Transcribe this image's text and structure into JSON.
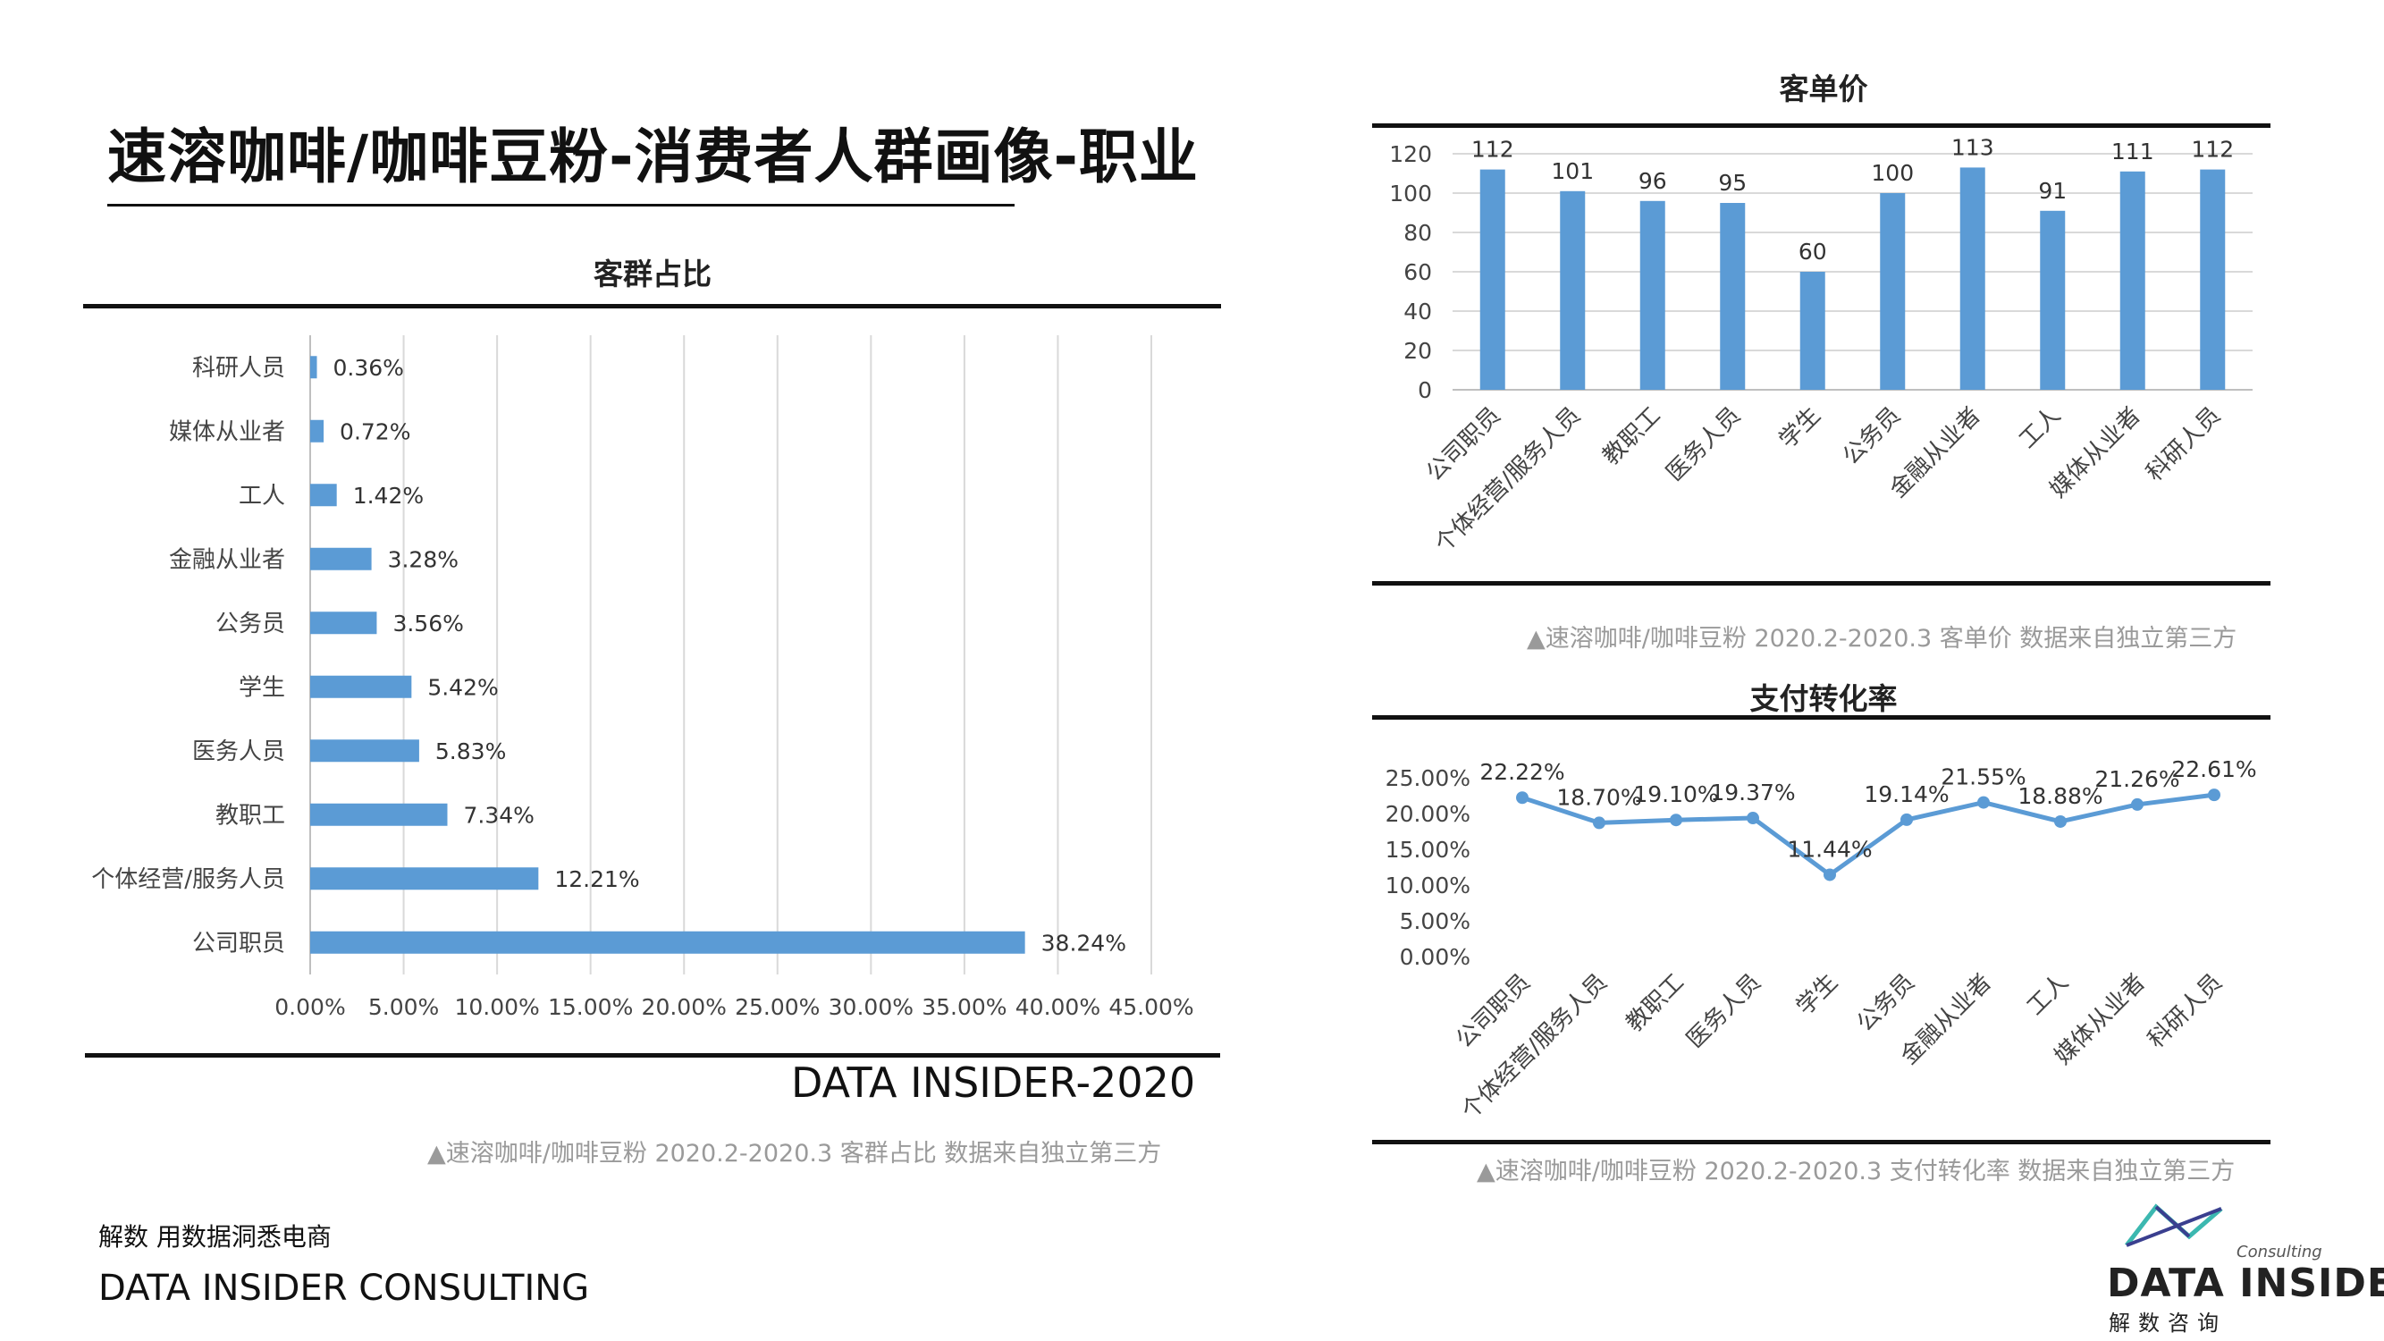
{
  "page": {
    "title": "速溶咖啡/咖啡豆粉-消费者人群画像-职业",
    "slogan": "解数 用数据洞悉电商",
    "brand": "DATA INSIDER CONSULTING",
    "year_tag": "DATA INSIDER-2020",
    "logo": {
      "word": "DATA INSIDER",
      "consulting": "Consulting",
      "cn": "解数咨询"
    }
  },
  "colors": {
    "bar": "#5B9BD5",
    "line": "#5B9BD5",
    "grid": "#d9d9d9",
    "rule": "#111111"
  },
  "chart_data": [
    {
      "id": "share",
      "type": "bar",
      "orientation": "horizontal",
      "title": "客群占比",
      "categories": [
        "科研人员",
        "媒体从业者",
        "工人",
        "金融从业者",
        "公务员",
        "学生",
        "医务人员",
        "教职工",
        "个体经营/服务人员",
        "公司职员"
      ],
      "values": [
        0.36,
        0.72,
        1.42,
        3.28,
        3.56,
        5.42,
        5.83,
        7.34,
        12.21,
        38.24
      ],
      "value_labels": [
        "0.36%",
        "0.72%",
        "1.42%",
        "3.28%",
        "3.56%",
        "5.42%",
        "5.83%",
        "7.34%",
        "12.21%",
        "38.24%"
      ],
      "xlim": [
        0,
        45
      ],
      "xticks": [
        "0.00%",
        "5.00%",
        "10.00%",
        "15.00%",
        "20.00%",
        "25.00%",
        "30.00%",
        "35.00%",
        "40.00%",
        "45.00%"
      ],
      "grid": true,
      "source": "▲速溶咖啡/咖啡豆粉 2020.2-2020.3 客群占比 数据来自独立第三方"
    },
    {
      "id": "price",
      "type": "bar",
      "title": "客单价",
      "categories": [
        "公司职员",
        "个体经营/服务人员",
        "教职工",
        "医务人员",
        "学生",
        "公务员",
        "金融从业者",
        "工人",
        "媒体从业者",
        "科研人员"
      ],
      "values": [
        112,
        101,
        96,
        95,
        60,
        100,
        113,
        91,
        111,
        112
      ],
      "ylim": [
        0,
        120
      ],
      "yticks": [
        "0",
        "20",
        "40",
        "60",
        "80",
        "100",
        "120"
      ],
      "grid": true,
      "source": "▲速溶咖啡/咖啡豆粉 2020.2-2020.3 客单价 数据来自独立第三方"
    },
    {
      "id": "conversion",
      "type": "line",
      "title": "支付转化率",
      "categories": [
        "公司职员",
        "个体经营/服务人员",
        "教职工",
        "医务人员",
        "学生",
        "公务员",
        "金融从业者",
        "工人",
        "媒体从业者",
        "科研人员"
      ],
      "values": [
        22.22,
        18.7,
        19.1,
        19.37,
        11.44,
        19.14,
        21.55,
        18.88,
        21.26,
        22.61
      ],
      "value_labels": [
        "22.22%",
        "18.70%",
        "19.10%",
        "19.37%",
        "11.44%",
        "19.14%",
        "21.55%",
        "18.88%",
        "21.26%",
        "22.61%"
      ],
      "ylim": [
        0,
        25
      ],
      "yticks": [
        "0.00%",
        "5.00%",
        "10.00%",
        "15.00%",
        "20.00%",
        "25.00%"
      ],
      "grid": true,
      "source": "▲速溶咖啡/咖啡豆粉 2020.2-2020.3 支付转化率 数据来自独立第三方"
    }
  ]
}
